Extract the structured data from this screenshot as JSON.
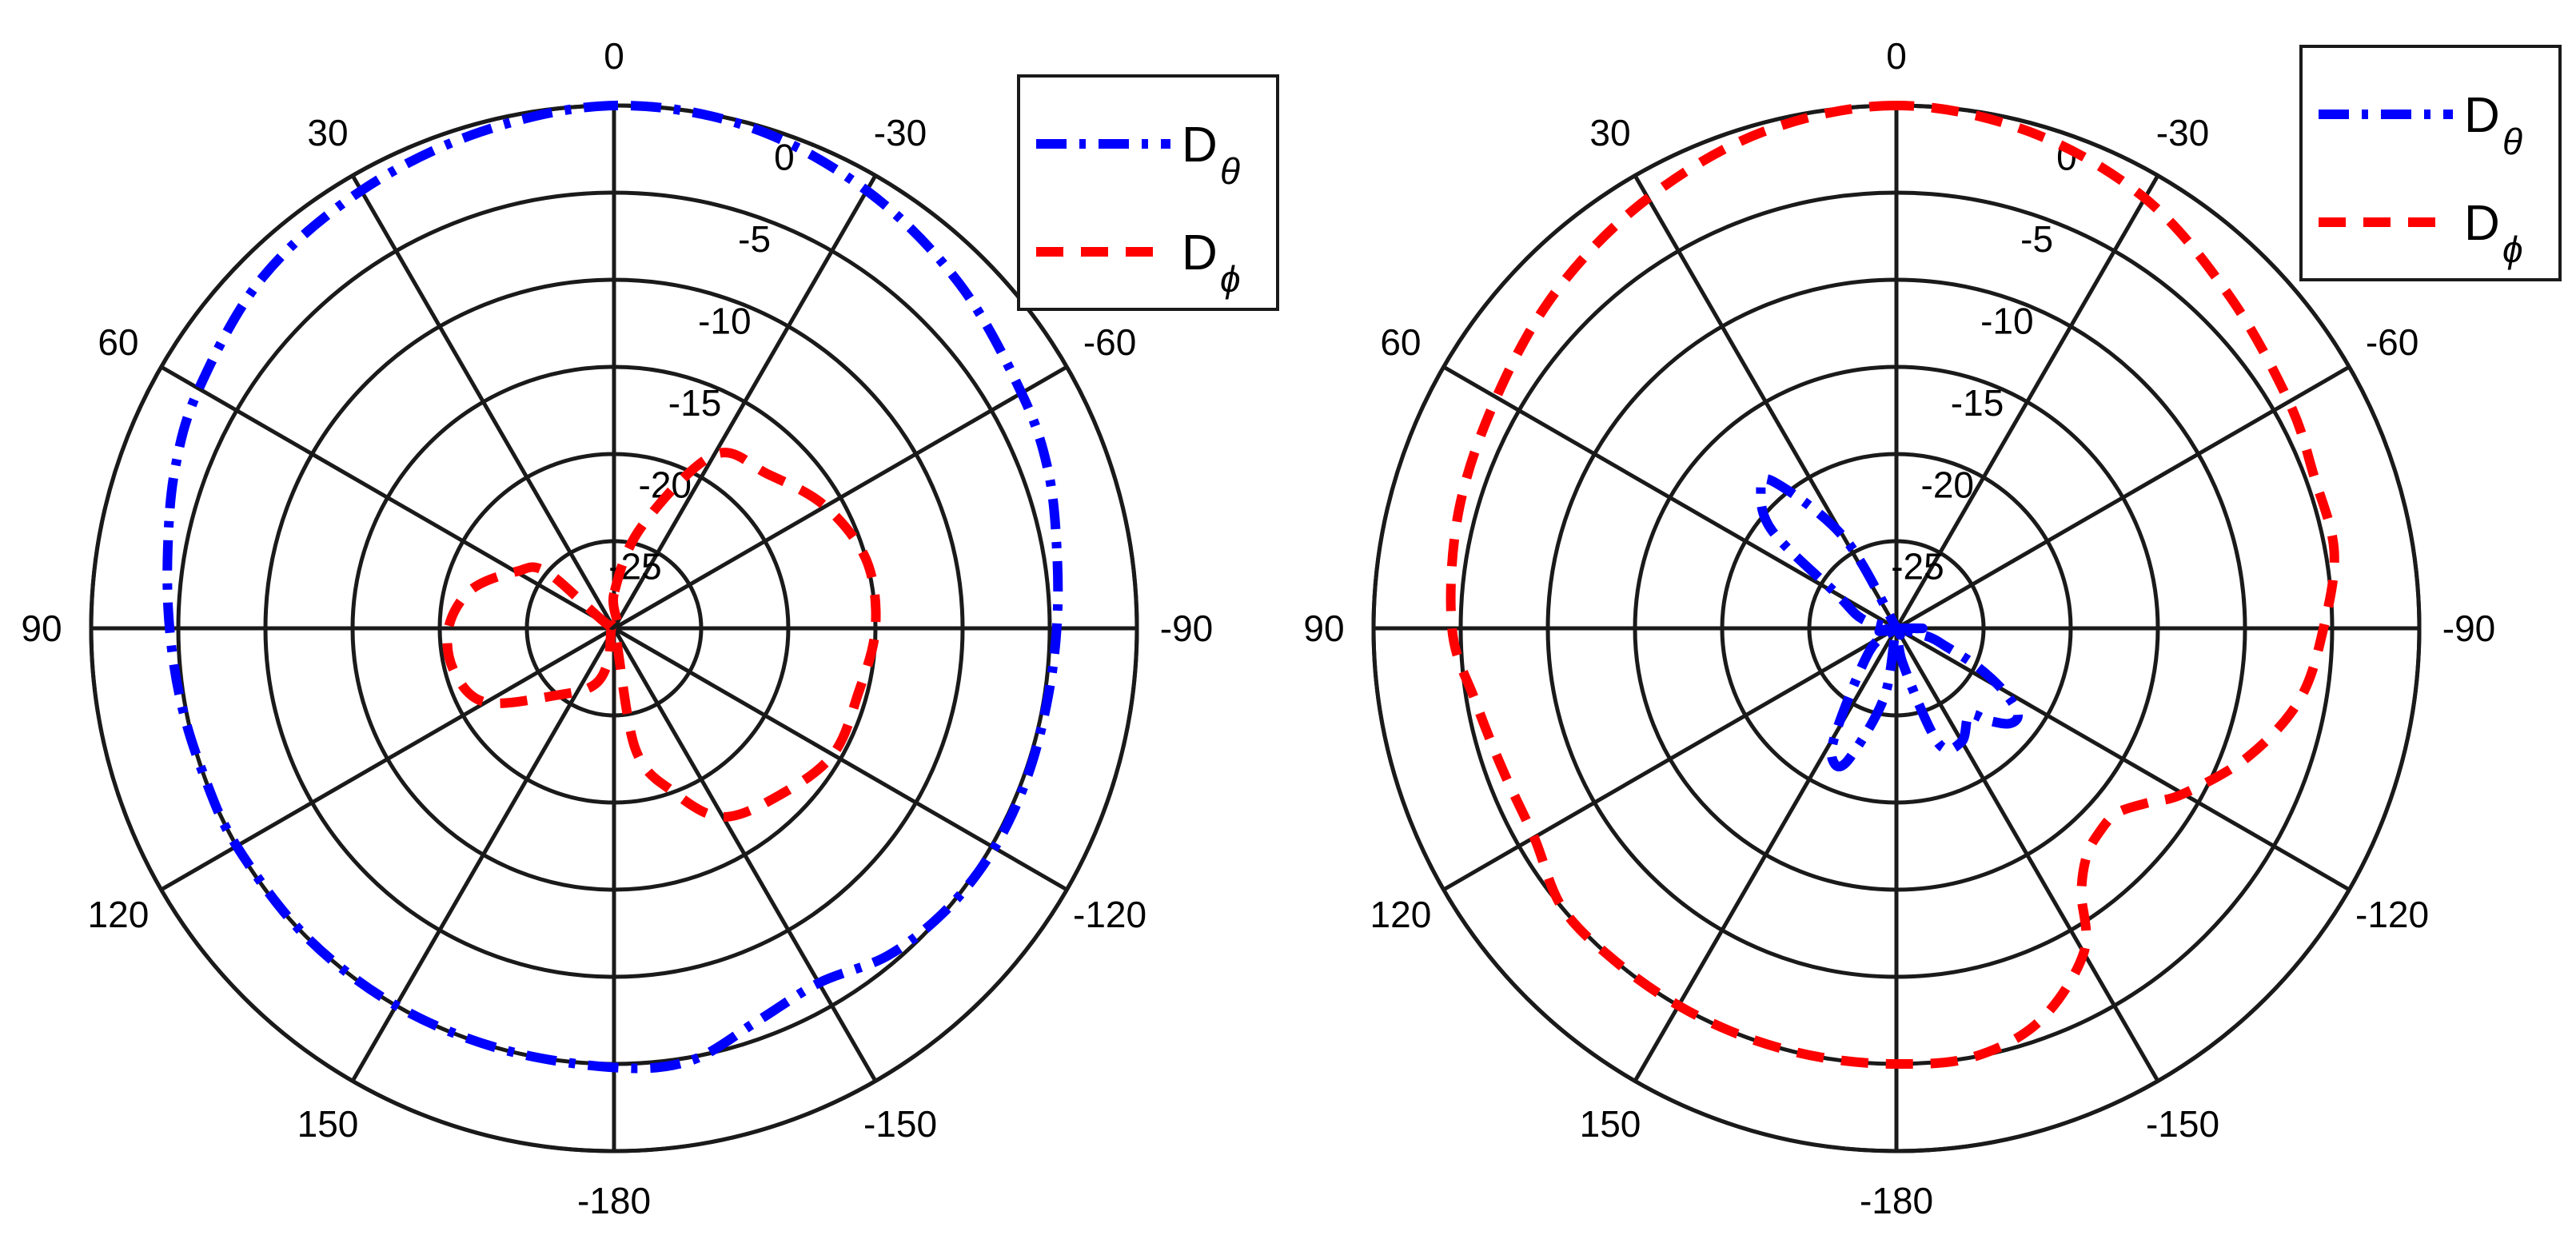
{
  "chart_data": [
    {
      "type": "polar-line",
      "theta_direction": "counterclockwise",
      "theta_zero": "top",
      "theta_ticks": [
        0,
        30,
        60,
        90,
        120,
        150,
        -180,
        -150,
        -120,
        -90,
        -60,
        -30
      ],
      "theta_tick_labels": [
        "0",
        "30",
        "60",
        "90",
        "120",
        "150",
        "-180",
        "-150",
        "-120",
        "-90",
        "-60",
        "-30"
      ],
      "r_ticks": [
        0,
        -5,
        -10,
        -15,
        -20,
        -25
      ],
      "r_tick_labels": [
        "0",
        "-5",
        "-10",
        "-15",
        "-20",
        "-25"
      ],
      "rlim": [
        -30,
        0
      ],
      "grid": true,
      "legend": {
        "position": "top-right",
        "entries": [
          "D",
          "D"
        ],
        "subscripts": [
          "θ",
          "ϕ"
        ]
      },
      "series": [
        {
          "name": "Dθ",
          "color": "#0000ff",
          "style": "dash-dot",
          "theta": [
            0,
            15,
            30,
            45,
            60,
            70,
            80,
            90,
            100,
            110,
            120,
            135,
            150,
            165,
            180,
            -170,
            -160,
            -150,
            -140,
            -130,
            -120,
            -110,
            -100,
            -90,
            -80,
            -70,
            -60,
            -45,
            -30,
            -15
          ],
          "r": [
            0,
            -0.5,
            -1,
            -1.5,
            -2.5,
            -3.2,
            -4,
            -4.5,
            -4.8,
            -5,
            -5,
            -5,
            -5,
            -5,
            -4.8,
            -4.8,
            -6,
            -6.5,
            -5.5,
            -5,
            -4.8,
            -4.8,
            -4.8,
            -4.6,
            -4.2,
            -3.5,
            -3,
            -2,
            -1,
            -0.2
          ]
        },
        {
          "name": "Dϕ",
          "color": "#ff0000",
          "style": "dashed",
          "theta": [
            0,
            30,
            50,
            60,
            75,
            90,
            105,
            120,
            140,
            160,
            170,
            180,
            -170,
            -160,
            -150,
            -135,
            -120,
            -105,
            -90,
            -75,
            -60,
            -45,
            -30,
            -15
          ],
          "r": [
            -28,
            -30,
            -25,
            -23.5,
            -21.5,
            -20.5,
            -20.5,
            -21.5,
            -25,
            -26.5,
            -28,
            -30,
            -23,
            -20,
            -17.5,
            -16.5,
            -15.5,
            -15.5,
            -15,
            -15,
            -16,
            -17.5,
            -18.5,
            -24
          ]
        }
      ]
    },
    {
      "type": "polar-line",
      "theta_direction": "counterclockwise",
      "theta_zero": "top",
      "theta_ticks": [
        0,
        30,
        60,
        90,
        120,
        150,
        -180,
        -150,
        -120,
        -90,
        -60,
        -30
      ],
      "theta_tick_labels": [
        "0",
        "30",
        "60",
        "90",
        "120",
        "150",
        "-180",
        "-150",
        "-120",
        "-90",
        "-60",
        "-30"
      ],
      "r_ticks": [
        0,
        -5,
        -10,
        -15,
        -20,
        -25
      ],
      "r_tick_labels": [
        "0",
        "-5",
        "-10",
        "-15",
        "-20",
        "-25"
      ],
      "rlim": [
        -30,
        0
      ],
      "grid": true,
      "legend": {
        "position": "top-right",
        "entries": [
          "D",
          "D"
        ],
        "subscripts": [
          "θ",
          "ϕ"
        ]
      },
      "series": [
        {
          "name": "Dθ",
          "color": "#0000ff",
          "style": "dash-dot",
          "theta": [
            0,
            20,
            30,
            40,
            45,
            52,
            60,
            75,
            90,
            100,
            110,
            130,
            150,
            155,
            160,
            170,
            180,
            -170,
            -160,
            -150,
            -140,
            -135,
            -130,
            -125,
            -120,
            -115,
            -110,
            -105,
            -100,
            -90,
            -70,
            -60,
            -40,
            -20
          ],
          "r": [
            -30,
            -30,
            -24,
            -19,
            -19,
            -21,
            -26,
            -28,
            -30,
            -29,
            -30,
            -28,
            -23,
            -21.5,
            -22,
            -26,
            -30,
            -28,
            -23,
            -22.5,
            -23.5,
            -22.5,
            -21.5,
            -21.5,
            -23,
            -25,
            -27,
            -28,
            -29.5,
            -28.5,
            -30,
            -30,
            -30,
            -30
          ]
        },
        {
          "name": "Dϕ",
          "color": "#ff0000",
          "style": "dashed",
          "theta": [
            0,
            15,
            30,
            45,
            60,
            75,
            90,
            100,
            110,
            120,
            130,
            140,
            150,
            160,
            170,
            180,
            -170,
            -160,
            -150,
            -145,
            -140,
            -135,
            -130,
            -125,
            -120,
            -110,
            -100,
            -90,
            -80,
            -70,
            -60,
            -45,
            -30,
            -15
          ],
          "r": [
            0,
            -0.5,
            -1.5,
            -2.5,
            -3.5,
            -4,
            -4.5,
            -5.5,
            -6,
            -6,
            -5,
            -5,
            -5,
            -5,
            -5,
            -5,
            -5,
            -6,
            -8.5,
            -11.5,
            -13,
            -13.5,
            -13.5,
            -12.5,
            -11,
            -8.5,
            -6.5,
            -5.5,
            -4.5,
            -4.5,
            -4,
            -3,
            -1.5,
            -0.5
          ]
        }
      ]
    }
  ]
}
